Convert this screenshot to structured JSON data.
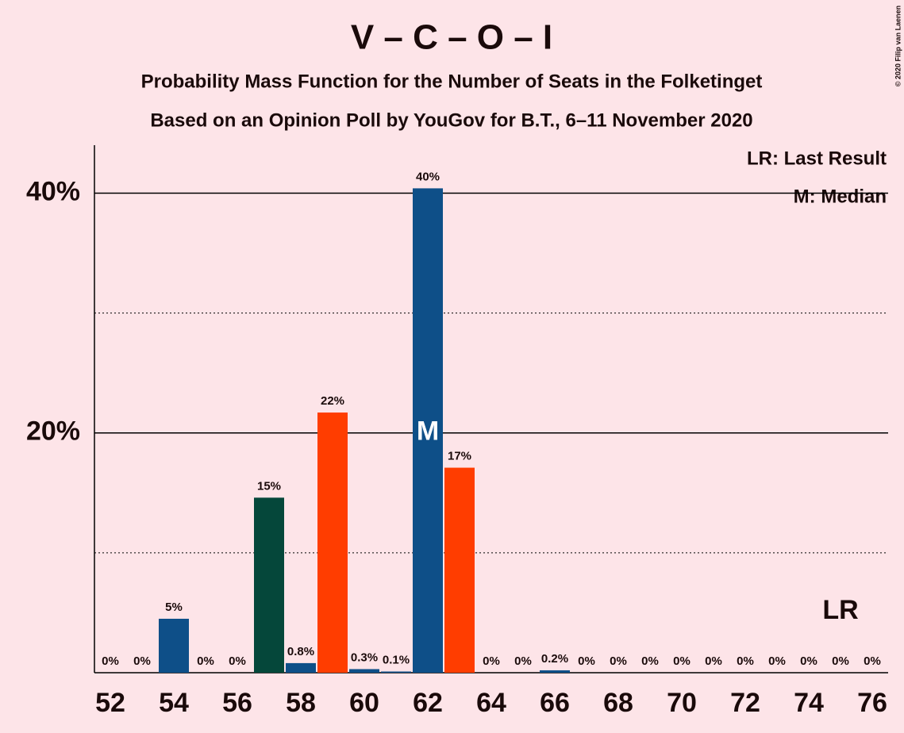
{
  "chart_data": {
    "type": "bar",
    "title": "V – C – O – I",
    "subtitle": "Probability Mass Function for the Number of Seats in the Folketinget",
    "subtitle2": "Based on an Opinion Poll by YouGov for B.T., 6–11 November 2020",
    "copyright": "© 2020 Filip van Laenen",
    "categories": [
      52,
      null,
      54,
      null,
      56,
      null,
      58,
      null,
      60,
      null,
      62,
      null,
      64,
      null,
      66,
      null,
      68,
      null,
      70,
      null,
      72,
      null,
      74,
      null,
      76
    ],
    "values": [
      0,
      0,
      4.5,
      0,
      0,
      14.6,
      0.8,
      21.7,
      0.3,
      0.1,
      40.4,
      17.1,
      0,
      0,
      0.2,
      0,
      0,
      0,
      0,
      0,
      0,
      0,
      0,
      0,
      0
    ],
    "value_labels": [
      "0%",
      "0%",
      "5%",
      "0%",
      "0%",
      "15%",
      "0.8%",
      "22%",
      "0.3%",
      "0.1%",
      "40%",
      "17%",
      "0%",
      "0%",
      "0.2%",
      "0%",
      "0%",
      "0%",
      "0%",
      "0%",
      "0%",
      "0%",
      "0%",
      "0%",
      "0%"
    ],
    "colors": [
      "#0e4f88",
      "#0e4f88",
      "#0e4f88",
      "#0e4f88",
      "#0e4f88",
      "#05473a",
      "#0e4f88",
      "#ff3d00",
      "#0e4f88",
      "#0e4f88",
      "#0e4f88",
      "#ff3d00",
      "#0e4f88",
      "#0e4f88",
      "#0e4f88",
      "#0e4f88",
      "#0e4f88",
      "#0e4f88",
      "#0e4f88",
      "#0e4f88",
      "#0e4f88",
      "#0e4f88",
      "#0e4f88",
      "#0e4f88",
      "#0e4f88"
    ],
    "ylim": [
      0,
      44
    ],
    "yticks": [
      {
        "value": 20,
        "label": "20%"
      },
      {
        "value": 40,
        "label": "40%"
      }
    ],
    "minor_yticks": [
      10,
      30
    ],
    "grid": true,
    "median_index": 10,
    "median_label": "M",
    "last_result_index": 23,
    "last_result_label": "LR",
    "legend": [
      "LR: Last Result",
      "M: Median"
    ]
  }
}
